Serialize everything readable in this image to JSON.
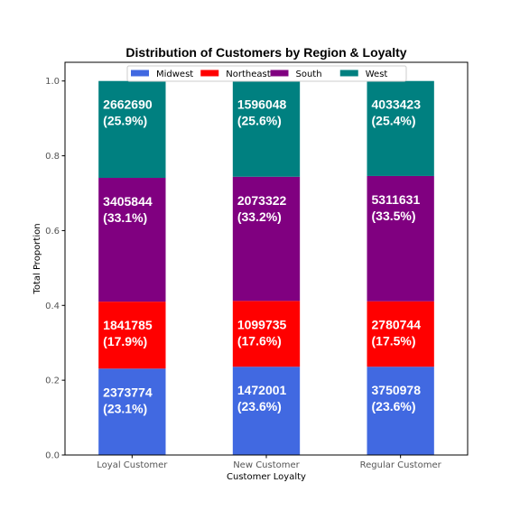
{
  "chart_data": {
    "type": "bar",
    "stacked": true,
    "title": "Distribution of Customers by Region & Loyalty",
    "xlabel": "Customer Loyalty",
    "ylabel": "Total Proportion",
    "ylim": [
      0,
      1.05
    ],
    "yticks": [
      "0.0",
      "0.2",
      "0.4",
      "0.6",
      "0.8",
      "1.0"
    ],
    "categories": [
      "Loyal Customer",
      "New Customer",
      "Regular Customer"
    ],
    "grid": false,
    "legend_position": "top",
    "series": [
      {
        "name": "Midwest",
        "color": "#4169e1",
        "counts": [
          2373774,
          1472001,
          3750978
        ],
        "values": [
          0.231,
          0.236,
          0.236
        ],
        "labels": [
          "(23.1%)",
          "(23.6%)",
          "(23.6%)"
        ]
      },
      {
        "name": "Northeast",
        "color": "#ff0000",
        "counts": [
          1841785,
          1099735,
          2780744
        ],
        "values": [
          0.179,
          0.176,
          0.175
        ],
        "labels": [
          "(17.9%)",
          "(17.6%)",
          "(17.5%)"
        ]
      },
      {
        "name": "South",
        "color": "#800080",
        "counts": [
          3405844,
          2073322,
          5311631
        ],
        "values": [
          0.331,
          0.332,
          0.335
        ],
        "labels": [
          "(33.1%)",
          "(33.2%)",
          "(33.5%)"
        ]
      },
      {
        "name": "West",
        "color": "#008080",
        "counts": [
          2662690,
          1596048,
          4033423
        ],
        "values": [
          0.259,
          0.256,
          0.254
        ],
        "labels": [
          "(25.9%)",
          "(25.6%)",
          "(25.4%)"
        ]
      }
    ]
  }
}
